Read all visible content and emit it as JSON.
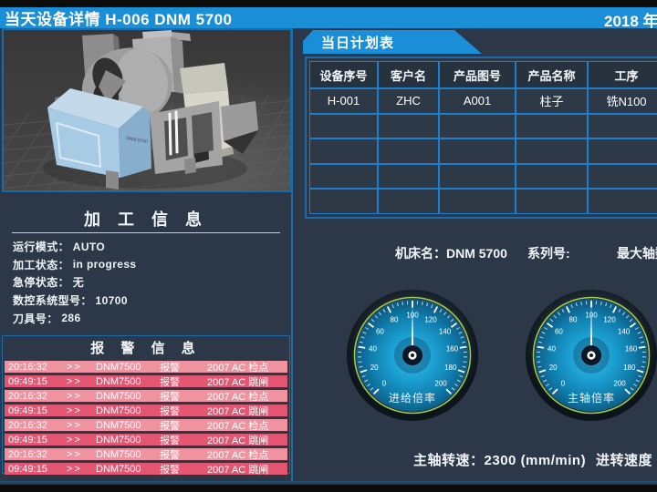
{
  "header": {
    "title": "当天设备详情  H-006   DNM 5700",
    "date": "2018 年"
  },
  "machine_view": {
    "label": "DNM 5700"
  },
  "processing_info": {
    "title": "加 工 信 息",
    "fields": [
      {
        "label": "运行模式：",
        "value": "AUTO"
      },
      {
        "label": "加工状态：",
        "value": "in progress"
      },
      {
        "label": "急停状态：",
        "value": "无"
      },
      {
        "label": "数控系统型号：",
        "value": "10700"
      },
      {
        "label": "刀具号：",
        "value": "286"
      }
    ]
  },
  "alarm_info": {
    "title": "报 警 信 息",
    "rows": [
      {
        "time": "20:16:32",
        "arrow": ">>",
        "device": "DNM7500",
        "type": "报警",
        "detail": "2007  AC 检点"
      },
      {
        "time": "09:49:15",
        "arrow": ">>",
        "device": "DNM7500",
        "type": "报警",
        "detail": "2007  AC 跳闸"
      },
      {
        "time": "20:16:32",
        "arrow": ">>",
        "device": "DNM7500",
        "type": "报警",
        "detail": "2007  AC 检点"
      },
      {
        "time": "09:49:15",
        "arrow": ">>",
        "device": "DNM7500",
        "type": "报警",
        "detail": "2007  AC 跳闸"
      },
      {
        "time": "20:16:32",
        "arrow": ">>",
        "device": "DNM7500",
        "type": "报警",
        "detail": "2007  AC 检点"
      },
      {
        "time": "09:49:15",
        "arrow": ">>",
        "device": "DNM7500",
        "type": "报警",
        "detail": "2007  AC 跳闸"
      },
      {
        "time": "20:16:32",
        "arrow": ">>",
        "device": "DNM7500",
        "type": "报警",
        "detail": "2007  AC 检点"
      },
      {
        "time": "09:49:15",
        "arrow": ">>",
        "device": "DNM7500",
        "type": "报警",
        "detail": "2007  AC 跳闸"
      }
    ]
  },
  "plan_table": {
    "title": "当日计划表",
    "headers": [
      "设备序号",
      "客户名",
      "产品图号",
      "产品名称",
      "工序"
    ],
    "rows": [
      [
        "H-001",
        "ZHC",
        "A001",
        "柱子",
        "铣N100"
      ],
      [
        "",
        "",
        "",
        "",
        ""
      ],
      [
        "",
        "",
        "",
        "",
        ""
      ],
      [
        "",
        "",
        "",
        "",
        ""
      ],
      [
        "",
        "",
        "",
        "",
        ""
      ]
    ]
  },
  "machine_info": {
    "name_label": "机床名：",
    "name_value": "DNM 5700",
    "series_label": "系列号:",
    "axes_label": "最大轴数"
  },
  "gauges": [
    {
      "label": "进给倍率",
      "min": 0,
      "max": 200,
      "step": 20,
      "value": 100
    },
    {
      "label": "主轴倍率",
      "min": 0,
      "max": 200,
      "step": 20,
      "value": 100
    }
  ],
  "footer": {
    "spindle_label": "主轴转速：",
    "spindle_value": "2300",
    "spindle_unit": "(mm/min)",
    "feed_label": "进转速度"
  },
  "colors": {
    "accent_blue": "#1b8ed8",
    "background": "#2c3847",
    "panel_border": "#1c6aa6",
    "table_line": "#1f7ecb",
    "alarm_row_light": "#ef93a0",
    "alarm_row_dark": "#e25672",
    "gauge_ring": "#a9c746",
    "gauge_face": "#1b9fd1"
  }
}
